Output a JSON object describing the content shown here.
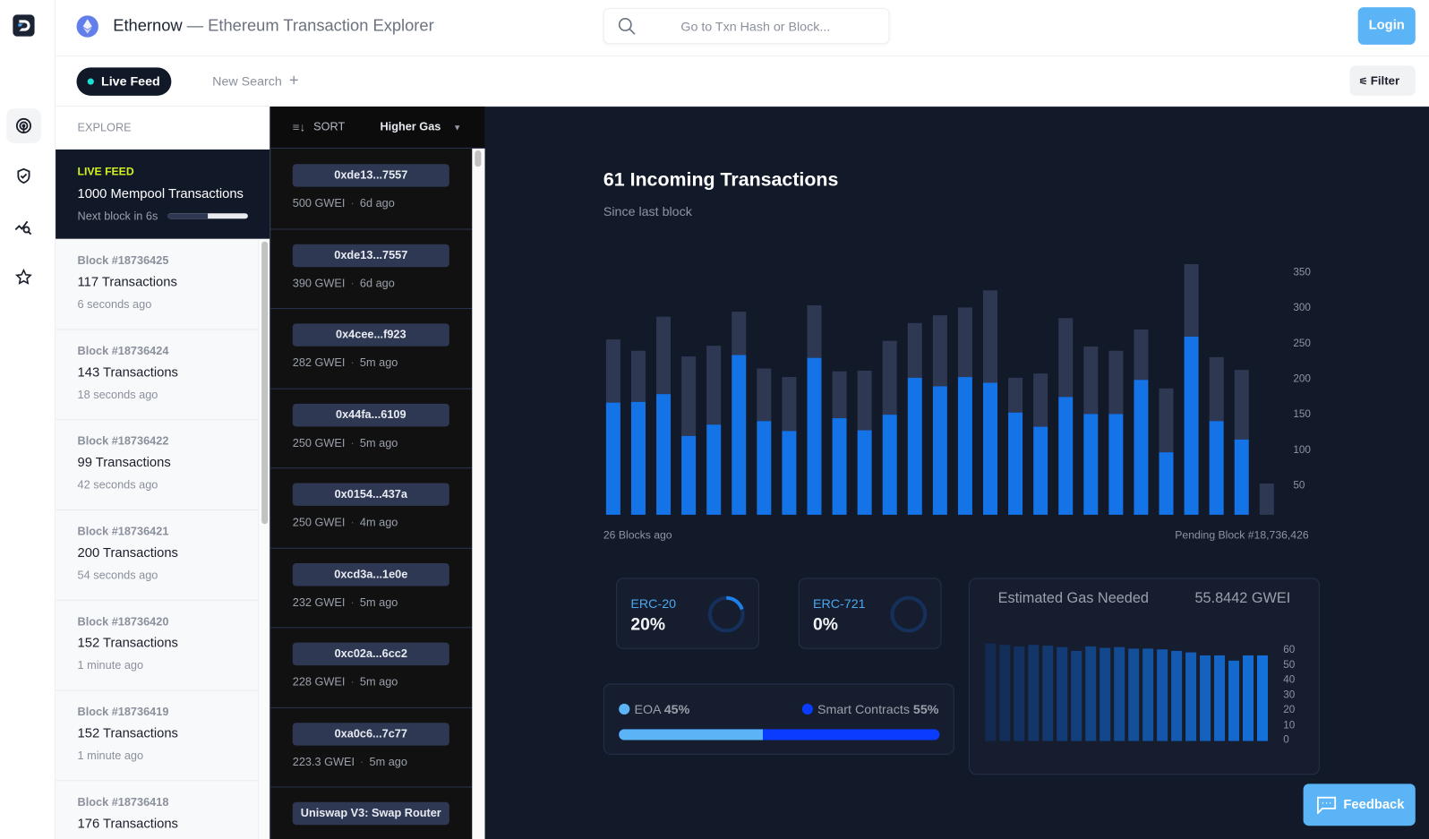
{
  "app": {
    "brand": "Ethernow",
    "title_suffix": "— Ethereum Transaction Explorer",
    "search_placeholder": "Go to Txn Hash or Block...",
    "login_label": "Login"
  },
  "rail": {
    "icons": [
      "logo-icon",
      "radar-icon",
      "shield-check-icon",
      "chart-search-icon",
      "star-icon"
    ]
  },
  "tabs": {
    "live_feed": "Live Feed",
    "new_search": "New Search",
    "filter": "Filter"
  },
  "explore": {
    "heading": "EXPLORE",
    "live": {
      "tag": "LIVE FEED",
      "title": "1000 Mempool Transactions",
      "next_block": "Next block in 6s",
      "progress": 0.5
    },
    "blocks": [
      {
        "title": "Block #18736425",
        "count": "117 Transactions",
        "ago": "6 seconds ago"
      },
      {
        "title": "Block #18736424",
        "count": "143 Transactions",
        "ago": "18 seconds ago"
      },
      {
        "title": "Block #18736422",
        "count": "99 Transactions",
        "ago": "42 seconds ago"
      },
      {
        "title": "Block #18736421",
        "count": "200 Transactions",
        "ago": "54 seconds ago"
      },
      {
        "title": "Block #18736420",
        "count": "152 Transactions",
        "ago": "1 minute ago"
      },
      {
        "title": "Block #18736419",
        "count": "152 Transactions",
        "ago": "1 minute ago"
      },
      {
        "title": "Block #18736418",
        "count": "176 Transactions",
        "ago": ""
      }
    ]
  },
  "txlist": {
    "sort_label": "SORT",
    "sort_value": "Higher Gas",
    "items": [
      {
        "hash": "0xde13...7557",
        "gas": "500 GWEI",
        "ago": "6d ago"
      },
      {
        "hash": "0xde13...7557",
        "gas": "390 GWEI",
        "ago": "6d ago"
      },
      {
        "hash": "0x4cee...f923",
        "gas": "282 GWEI",
        "ago": "5m ago"
      },
      {
        "hash": "0x44fa...6109",
        "gas": "250 GWEI",
        "ago": "5m ago"
      },
      {
        "hash": "0x0154...437a",
        "gas": "250 GWEI",
        "ago": "4m ago"
      },
      {
        "hash": "0xcd3a...1e0e",
        "gas": "232 GWEI",
        "ago": "5m ago"
      },
      {
        "hash": "0xc02a...6cc2",
        "gas": "228 GWEI",
        "ago": "5m ago"
      },
      {
        "hash": "0xa0c6...7c77",
        "gas": "223.3 GWEI",
        "ago": "5m ago"
      },
      {
        "hash": "Uniswap V3: Swap Router",
        "gas": "",
        "ago": ""
      }
    ]
  },
  "main": {
    "heading": "61 Incoming Transactions",
    "subheading": "Since last block",
    "left_label": "26 Blocks ago",
    "right_label": "Pending Block #18,736,426",
    "erc20": {
      "label": "ERC-20",
      "value": "20%",
      "fraction": 0.2
    },
    "erc721": {
      "label": "ERC-721",
      "value": "0%",
      "fraction": 0
    },
    "eoa": {
      "label": "EOA",
      "value": "45%",
      "fraction": 0.45,
      "color": "#5ab4f5"
    },
    "contracts": {
      "label": "Smart Contracts",
      "value": "55%",
      "fraction": 0.55,
      "color": "#0a3cff"
    },
    "gas": {
      "label": "Estimated Gas Needed",
      "value": "55.8442 GWEI"
    },
    "feedback": "Feedback"
  },
  "chart_data": [
    {
      "type": "bar",
      "stacked": true,
      "ylim": [
        0,
        350
      ],
      "yticks": [
        50,
        100,
        150,
        200,
        250,
        300,
        350
      ],
      "colors": {
        "lower": "#1473e6",
        "upper": "#2e3853"
      },
      "lower": [
        158,
        159,
        170,
        111,
        127,
        225,
        132,
        118,
        221,
        136,
        119,
        141,
        193,
        181,
        194,
        186,
        144,
        124,
        166,
        142,
        142,
        190,
        88,
        251,
        132,
        106,
        0
      ],
      "total": [
        247,
        231,
        279,
        223,
        238,
        286,
        206,
        194,
        295,
        202,
        203,
        245,
        270,
        281,
        292,
        316,
        193,
        199,
        277,
        237,
        231,
        261,
        178,
        353,
        222,
        204,
        44
      ]
    },
    {
      "type": "bar",
      "ylim": [
        0,
        60
      ],
      "yticks": [
        0,
        10,
        20,
        30,
        40,
        50,
        60
      ],
      "values": [
        65,
        64,
        63,
        64,
        63.5,
        62.5,
        60,
        63,
        62,
        62.5,
        61.5,
        61.5,
        61,
        60,
        59,
        57,
        57,
        53.5,
        57,
        57
      ]
    }
  ]
}
